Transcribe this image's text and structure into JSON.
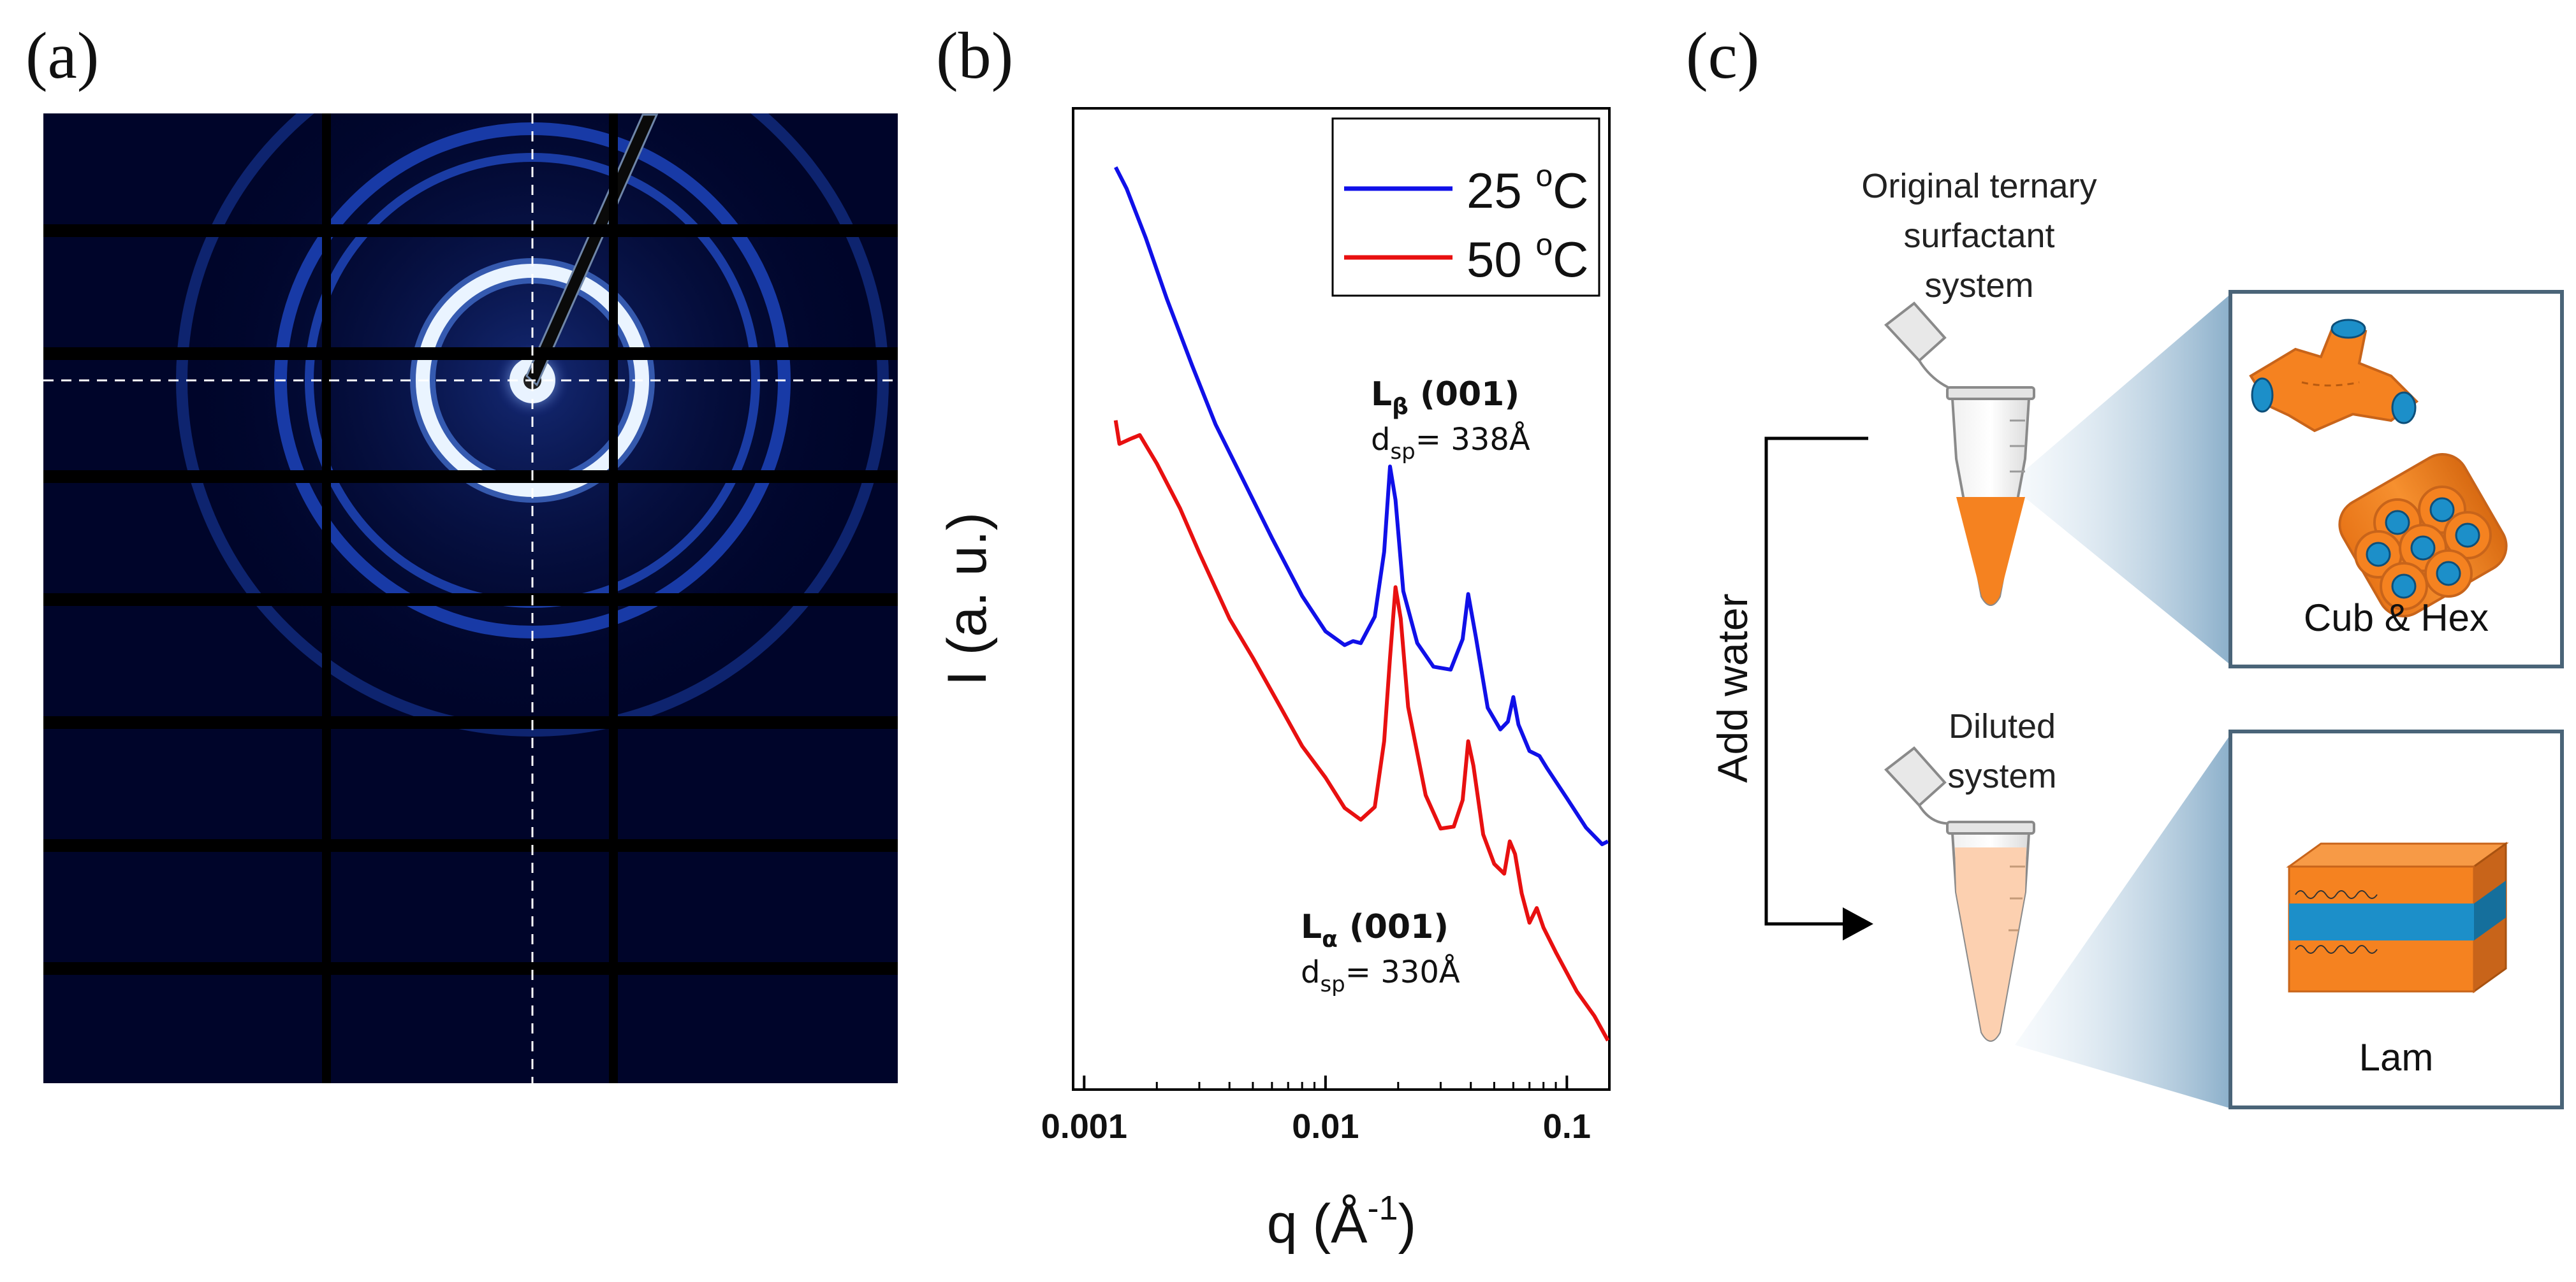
{
  "panels": {
    "a": "(a)",
    "b": "(b)",
    "c": "(c)"
  },
  "chart_data": {
    "type": "line",
    "xlabel": "q (Å",
    "xlabel_sup": "-1",
    "xlabel_end": ")",
    "ylabel": "I (a. u.)",
    "x_scale": "log",
    "xlim": [
      0.0009,
      0.15
    ],
    "x_ticks": [
      {
        "value": 0.001,
        "label": "0.001"
      },
      {
        "value": 0.01,
        "label": "0.01"
      },
      {
        "value": 0.1,
        "label": "0.1"
      }
    ],
    "y_axis_ticks_visible": false,
    "ylim": [
      0,
      1
    ],
    "legend_position": "top-right",
    "colors": {
      "s25": "#1010e8",
      "s50": "#e81010"
    },
    "series": [
      {
        "name": "25 oC",
        "name_main": "25 ",
        "name_sup": "o",
        "name_end": "C",
        "color": "#1010e8",
        "points": [
          [
            0.00135,
            0.94
          ],
          [
            0.0015,
            0.918
          ],
          [
            0.0018,
            0.868
          ],
          [
            0.0022,
            0.806
          ],
          [
            0.0028,
            0.738
          ],
          [
            0.0035,
            0.678
          ],
          [
            0.0045,
            0.624
          ],
          [
            0.006,
            0.562
          ],
          [
            0.008,
            0.503
          ],
          [
            0.01,
            0.467
          ],
          [
            0.012,
            0.453
          ],
          [
            0.013,
            0.457
          ],
          [
            0.014,
            0.455
          ],
          [
            0.016,
            0.482
          ],
          [
            0.0175,
            0.548
          ],
          [
            0.0185,
            0.635
          ],
          [
            0.0195,
            0.601
          ],
          [
            0.021,
            0.508
          ],
          [
            0.024,
            0.455
          ],
          [
            0.028,
            0.431
          ],
          [
            0.033,
            0.428
          ],
          [
            0.037,
            0.459
          ],
          [
            0.039,
            0.505
          ],
          [
            0.042,
            0.461
          ],
          [
            0.047,
            0.389
          ],
          [
            0.053,
            0.367
          ],
          [
            0.057,
            0.375
          ],
          [
            0.06,
            0.4
          ],
          [
            0.063,
            0.372
          ],
          [
            0.07,
            0.345
          ],
          [
            0.077,
            0.34
          ],
          [
            0.083,
            0.327
          ],
          [
            0.1,
            0.297
          ],
          [
            0.12,
            0.267
          ],
          [
            0.14,
            0.25
          ],
          [
            0.148,
            0.253
          ]
        ]
      },
      {
        "name": "50 oC",
        "name_main": "50 ",
        "name_sup": "o",
        "name_end": "C",
        "color": "#e81010",
        "points": [
          [
            0.00135,
            0.682
          ],
          [
            0.0014,
            0.658
          ],
          [
            0.00155,
            0.663
          ],
          [
            0.0017,
            0.667
          ],
          [
            0.002,
            0.638
          ],
          [
            0.0025,
            0.592
          ],
          [
            0.003,
            0.547
          ],
          [
            0.004,
            0.48
          ],
          [
            0.005,
            0.44
          ],
          [
            0.0065,
            0.39
          ],
          [
            0.008,
            0.35
          ],
          [
            0.01,
            0.318
          ],
          [
            0.012,
            0.287
          ],
          [
            0.014,
            0.275
          ],
          [
            0.016,
            0.288
          ],
          [
            0.0175,
            0.355
          ],
          [
            0.0185,
            0.44
          ],
          [
            0.0195,
            0.512
          ],
          [
            0.0205,
            0.48
          ],
          [
            0.022,
            0.39
          ],
          [
            0.026,
            0.3
          ],
          [
            0.03,
            0.266
          ],
          [
            0.034,
            0.268
          ],
          [
            0.037,
            0.295
          ],
          [
            0.039,
            0.355
          ],
          [
            0.041,
            0.33
          ],
          [
            0.045,
            0.26
          ],
          [
            0.05,
            0.23
          ],
          [
            0.055,
            0.22
          ],
          [
            0.058,
            0.253
          ],
          [
            0.061,
            0.24
          ],
          [
            0.065,
            0.2
          ],
          [
            0.07,
            0.17
          ],
          [
            0.075,
            0.185
          ],
          [
            0.08,
            0.165
          ],
          [
            0.09,
            0.14
          ],
          [
            0.11,
            0.1
          ],
          [
            0.13,
            0.075
          ],
          [
            0.148,
            0.05
          ]
        ]
      }
    ],
    "annotations": [
      {
        "id": "lb",
        "main": "L",
        "sub": "β",
        "rest": " (001)",
        "line2_main": "d",
        "line2_sub": "sp",
        "line2_rest": "= 338Å",
        "x": 0.0093,
        "y": 0.7
      },
      {
        "id": "la",
        "main": "L",
        "sub": "α",
        "rest": " (001)",
        "line2_main": "d",
        "line2_sub": "sp",
        "line2_rest": "= 330Å",
        "x": 0.0088,
        "y": 0.145
      }
    ]
  },
  "detector": {
    "colors": {
      "background": "#00052a",
      "ring": "#2a6dff",
      "bright": "#e9f3ff",
      "gap": "#000000",
      "guide": "#ffffff"
    }
  },
  "schematic": {
    "top_label": [
      "Original ternary",
      "surfactant",
      "system"
    ],
    "bottom_label": [
      "Diluted",
      "system"
    ],
    "arrow_label": "Add water",
    "top_box_label": "Cub & Hex",
    "bottom_box_label": "Lam",
    "colors": {
      "orange": "#f58220",
      "orange_dark": "#c8641a",
      "blue": "#1c8fc9",
      "box_border": "#4a6478",
      "tube": "#d8d8d8",
      "fill_light": "#fcd0b0"
    }
  }
}
